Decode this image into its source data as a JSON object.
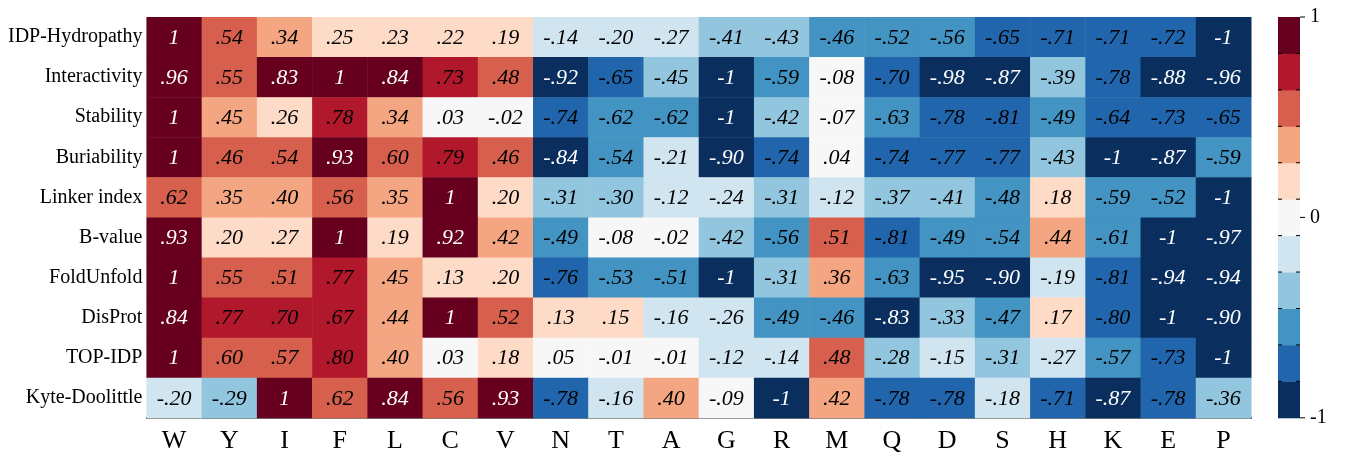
{
  "chart_data": {
    "type": "heatmap",
    "categories": [
      "W",
      "Y",
      "I",
      "F",
      "L",
      "C",
      "V",
      "N",
      "T",
      "A",
      "G",
      "R",
      "M",
      "Q",
      "D",
      "S",
      "H",
      "K",
      "E",
      "P"
    ],
    "y_categories": [
      "IDP-Hydropathy",
      "Interactivity",
      "Stability",
      "Buriability",
      "Linker index",
      "B-value",
      "FoldUnfold",
      "DisProt",
      "TOP-IDP",
      "Kyte-Doolittle"
    ],
    "cells": [
      [
        1,
        0.54,
        0.34,
        0.25,
        0.23,
        0.22,
        0.19,
        -0.14,
        -0.2,
        -0.27,
        -0.41,
        -0.43,
        -0.46,
        -0.52,
        -0.56,
        -0.65,
        -0.71,
        -0.71,
        -0.72,
        -1
      ],
      [
        0.96,
        0.55,
        0.83,
        1,
        0.84,
        0.73,
        0.48,
        -0.92,
        -0.65,
        -0.45,
        -1,
        -0.59,
        -0.08,
        -0.7,
        -0.98,
        -0.87,
        -0.39,
        -0.78,
        -0.88,
        -0.96
      ],
      [
        1,
        0.45,
        0.26,
        0.78,
        0.34,
        0.03,
        -0.02,
        -0.74,
        -0.62,
        -0.62,
        -1,
        -0.42,
        -0.07,
        -0.63,
        -0.78,
        -0.81,
        -0.49,
        -0.64,
        -0.73,
        -0.65
      ],
      [
        1,
        0.46,
        0.54,
        0.93,
        0.6,
        0.79,
        0.46,
        -0.84,
        -0.54,
        -0.21,
        -0.9,
        -0.74,
        0.04,
        -0.74,
        -0.77,
        -0.77,
        -0.43,
        -1,
        -0.87,
        -0.59
      ],
      [
        0.62,
        0.35,
        0.4,
        0.56,
        0.35,
        1,
        0.2,
        -0.31,
        -0.3,
        -0.12,
        -0.24,
        -0.31,
        -0.12,
        -0.37,
        -0.41,
        -0.48,
        0.18,
        -0.59,
        -0.52,
        -1
      ],
      [
        0.93,
        0.2,
        0.27,
        1,
        0.19,
        0.92,
        0.42,
        -0.49,
        -0.08,
        -0.02,
        -0.42,
        -0.56,
        0.51,
        -0.81,
        -0.49,
        -0.54,
        0.44,
        -0.61,
        -1,
        -0.97
      ],
      [
        1,
        0.55,
        0.51,
        0.77,
        0.45,
        0.13,
        0.2,
        -0.76,
        -0.53,
        -0.51,
        -1,
        -0.31,
        0.36,
        -0.63,
        -0.95,
        -0.9,
        -0.19,
        -0.81,
        -0.94,
        -0.94
      ],
      [
        0.84,
        0.77,
        0.7,
        0.67,
        0.44,
        1,
        0.52,
        0.13,
        0.15,
        -0.16,
        -0.26,
        -0.49,
        -0.46,
        -0.83,
        -0.33,
        -0.47,
        0.17,
        -0.8,
        -1,
        -0.9
      ],
      [
        1,
        0.6,
        0.57,
        0.8,
        0.4,
        0.03,
        0.18,
        0.05,
        -0.01,
        -0.01,
        -0.12,
        -0.14,
        0.48,
        -0.28,
        -0.15,
        -0.31,
        -0.27,
        -0.57,
        -0.73,
        -1
      ],
      [
        -0.2,
        -0.29,
        1,
        0.62,
        0.84,
        0.56,
        0.93,
        -0.78,
        -0.16,
        0.4,
        -0.09,
        -1,
        0.42,
        -0.78,
        -0.78,
        -0.18,
        -0.71,
        -0.87,
        -0.78,
        -0.36
      ]
    ],
    "cell_labels": [
      [
        "1",
        ".54",
        ".34",
        ".25",
        ".23",
        ".22",
        ".19",
        "-.14",
        "-.20",
        "-.27",
        "-.41",
        "-.43",
        "-.46",
        "-.52",
        "-.56",
        "-.65",
        "-.71",
        "-.71",
        "-.72",
        "-1"
      ],
      [
        ".96",
        ".55",
        ".83",
        "1",
        ".84",
        ".73",
        ".48",
        "-.92",
        "-.65",
        "-.45",
        "-1",
        "-.59",
        "-.08",
        "-.70",
        "-.98",
        "-.87",
        "-.39",
        "-.78",
        "-.88",
        "-.96"
      ],
      [
        "1",
        ".45",
        ".26",
        ".78",
        ".34",
        ".03",
        "-.02",
        "-.74",
        "-.62",
        "-.62",
        "-1",
        "-.42",
        "-.07",
        "-.63",
        "-.78",
        "-.81",
        "-.49",
        "-.64",
        "-.73",
        "-.65"
      ],
      [
        "1",
        ".46",
        ".54",
        ".93",
        ".60",
        ".79",
        ".46",
        "-.84",
        "-.54",
        "-.21",
        "-.90",
        "-.74",
        ".04",
        "-.74",
        "-.77",
        "-.77",
        "-.43",
        "-1",
        "-.87",
        "-.59"
      ],
      [
        ".62",
        ".35",
        ".40",
        ".56",
        ".35",
        "1",
        ".20",
        "-.31",
        "-.30",
        "-.12",
        "-.24",
        "-.31",
        "-.12",
        "-.37",
        "-.41",
        "-.48",
        ".18",
        "-.59",
        "-.52",
        "-1"
      ],
      [
        ".93",
        ".20",
        ".27",
        "1",
        ".19",
        ".92",
        ".42",
        "-.49",
        "-.08",
        "-.02",
        "-.42",
        "-.56",
        ".51",
        "-.81",
        "-.49",
        "-.54",
        ".44",
        "-.61",
        "-1",
        "-.97"
      ],
      [
        "1",
        ".55",
        ".51",
        ".77",
        ".45",
        ".13",
        ".20",
        "-.76",
        "-.53",
        "-.51",
        "-1",
        "-.31",
        ".36",
        "-.63",
        "-.95",
        "-.90",
        "-.19",
        "-.81",
        "-.94",
        "-.94"
      ],
      [
        ".84",
        ".77",
        ".70",
        ".67",
        ".44",
        "1",
        ".52",
        ".13",
        ".15",
        "-.16",
        "-.26",
        "-.49",
        "-.46",
        "-.83",
        "-.33",
        "-.47",
        ".17",
        "-.80",
        "-1",
        "-.90"
      ],
      [
        "1",
        ".60",
        ".57",
        ".80",
        ".40",
        ".03",
        ".18",
        ".05",
        "-.01",
        "-.01",
        "-.12",
        "-.14",
        ".48",
        "-.28",
        "-.15",
        "-.31",
        "-.27",
        "-.57",
        "-.73",
        "-1"
      ],
      [
        "-.20",
        "-.29",
        "1",
        ".62",
        ".84",
        ".56",
        ".93",
        "-.78",
        "-.16",
        ".40",
        "-.09",
        "-1",
        ".42",
        "-.78",
        "-.78",
        "-.18",
        "-.71",
        "-.87",
        "-.78",
        "-.36"
      ]
    ],
    "clim": [
      -1,
      1
    ],
    "cticks": [
      1,
      0,
      -1
    ]
  }
}
